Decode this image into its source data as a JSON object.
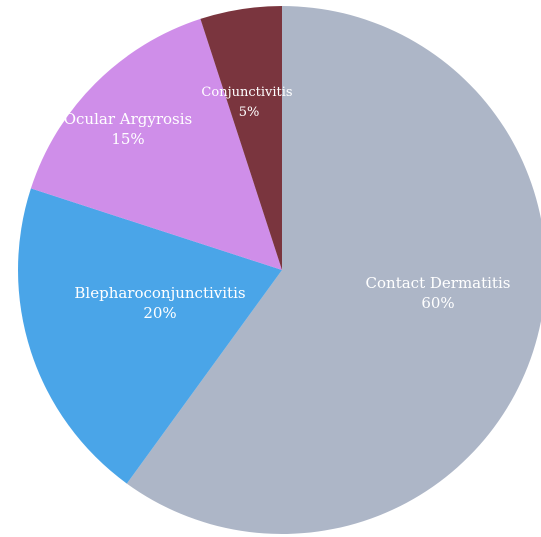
{
  "chart_data": {
    "type": "pie",
    "title": "",
    "start_angle_deg": 0,
    "direction": "clockwise",
    "slices": [
      {
        "label": "Contact Dermatitis",
        "value": 60,
        "value_label": "60%",
        "color": "#adb6c7"
      },
      {
        "label": "Blepharoconjunctivitis",
        "value": 20,
        "value_label": "20%",
        "color": "#4aa5e8"
      },
      {
        "label": "Ocular Argyrosis",
        "value": 15,
        "value_label": "15%",
        "color": "#cf8ee9"
      },
      {
        "label": "Conjunctivitis",
        "value": 5,
        "value_label": "5%",
        "color": "#7a353e"
      }
    ]
  }
}
